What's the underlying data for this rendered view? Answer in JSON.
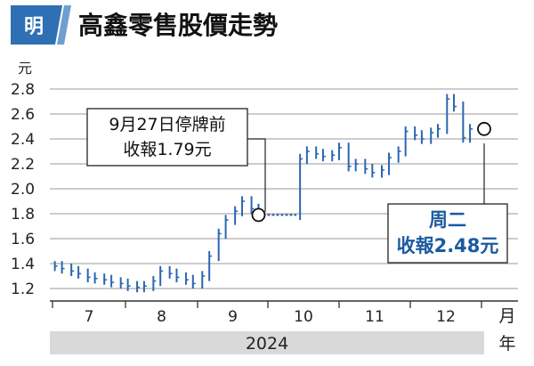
{
  "badge": {
    "label": "明",
    "color": "#2f6fb3"
  },
  "colors": {
    "bar": "#2a66b0",
    "grid": "#9a9a9a",
    "axis": "#333333",
    "year_band": "#d9d9d9",
    "accent": "#1a5aa0"
  },
  "chart_data": {
    "type": "bar",
    "title": "高鑫零售股價走勢",
    "ylabel": "元",
    "xlabel": "月",
    "year_label": "2024",
    "year_unit": "年",
    "ylim": [
      1.1,
      2.9
    ],
    "yticks": [
      "1.2",
      "1.4",
      "1.6",
      "1.8",
      "2.0",
      "2.2",
      "2.4",
      "2.6",
      "2.8"
    ],
    "xticks": [
      "7",
      "8",
      "9",
      "10",
      "11",
      "12"
    ],
    "series": [
      {
        "x": [
          "2024-07-02",
          "2024-07-05",
          "2024-07-09",
          "2024-07-12",
          "2024-07-16",
          "2024-07-19",
          "2024-07-23",
          "2024-07-26",
          "2024-07-30",
          "2024-08-02",
          "2024-08-06",
          "2024-08-09",
          "2024-08-13",
          "2024-08-16",
          "2024-08-20",
          "2024-08-23",
          "2024-08-27",
          "2024-08-30",
          "2024-09-03",
          "2024-09-06",
          "2024-09-10",
          "2024-09-13",
          "2024-09-17",
          "2024-09-20",
          "2024-09-24",
          "2024-09-27",
          "2024-10-15",
          "2024-10-18",
          "2024-10-22",
          "2024-10-25",
          "2024-10-29",
          "2024-11-01",
          "2024-11-05",
          "2024-11-08",
          "2024-11-12",
          "2024-11-15",
          "2024-11-19",
          "2024-11-22",
          "2024-11-26",
          "2024-11-29",
          "2024-12-03",
          "2024-12-06",
          "2024-12-10",
          "2024-12-13",
          "2024-12-17",
          "2024-12-20",
          "2024-12-24",
          "2024-12-27"
        ],
        "values": [
          1.38,
          1.36,
          1.34,
          1.32,
          1.29,
          1.28,
          1.27,
          1.25,
          1.24,
          1.22,
          1.21,
          1.22,
          1.26,
          1.34,
          1.32,
          1.29,
          1.27,
          1.24,
          1.3,
          1.46,
          1.64,
          1.75,
          1.82,
          1.9,
          1.84,
          1.79,
          2.24,
          2.3,
          2.28,
          2.26,
          2.27,
          2.33,
          2.18,
          2.2,
          2.16,
          2.13,
          2.15,
          2.25,
          2.3,
          2.46,
          2.43,
          2.4,
          2.45,
          2.48,
          2.72,
          2.66,
          2.41,
          2.48
        ]
      }
    ],
    "annotations": [
      {
        "lines": [
          "9月27日停牌前",
          "收報1.79元"
        ],
        "date": "2024-09-27",
        "value": 1.79
      },
      {
        "lines": [
          "周二",
          "收報2.48元"
        ],
        "date": "2024-12-31",
        "value": 2.48
      }
    ]
  }
}
